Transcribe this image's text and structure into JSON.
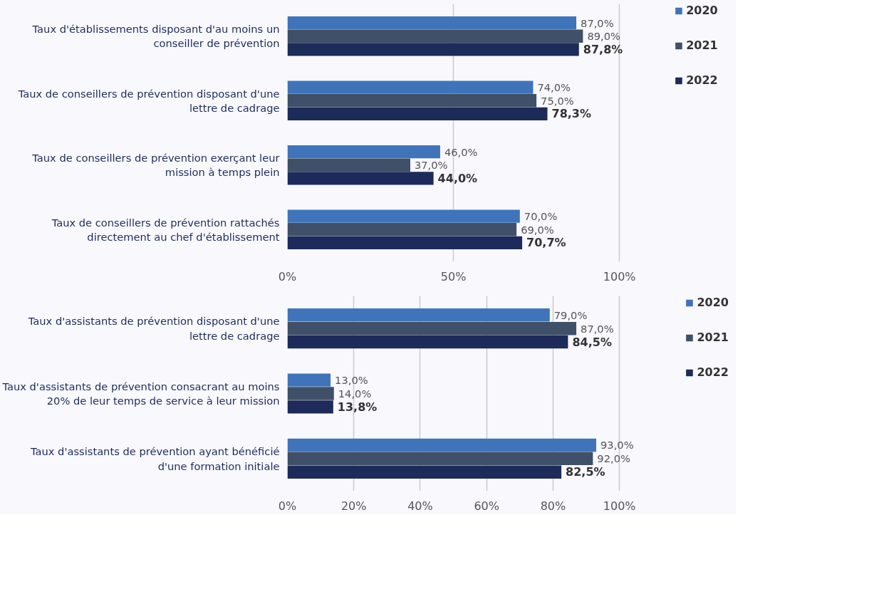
{
  "chart_data": [
    {
      "type": "bar",
      "orientation": "horizontal",
      "categories": [
        "Taux d'établissements disposant d'au moins un conseiller de prévention",
        "Taux de conseillers de prévention disposant d'une lettre de cadrage",
        "Taux de conseillers de prévention exerçant leur mission à temps plein",
        "Taux de conseillers de prévention rattachés directement au chef d'établissement"
      ],
      "series": [
        {
          "name": "2020",
          "color": "#3f74ba",
          "values": [
            87.0,
            74.0,
            46.0,
            70.0
          ],
          "value_labels": [
            "87,0%",
            "74,0%",
            "46,0%",
            "70,0%"
          ]
        },
        {
          "name": "2021",
          "color": "#3f5068",
          "values": [
            89.0,
            75.0,
            37.0,
            69.0
          ],
          "value_labels": [
            "89,0%",
            "75,0%",
            "37,0%",
            "69,0%"
          ]
        },
        {
          "name": "2022",
          "color": "#1d2b5a",
          "values": [
            87.8,
            78.3,
            44.0,
            70.7
          ],
          "value_labels": [
            "87,8%",
            "78,3%",
            "44,0%",
            "70,7%"
          ]
        }
      ],
      "xlim": [
        0,
        100
      ],
      "xticks": [
        {
          "value": 0,
          "label": "0%"
        },
        {
          "value": 50,
          "label": "50%"
        },
        {
          "value": 100,
          "label": "100%"
        }
      ],
      "grid": "x",
      "legend": "right"
    },
    {
      "type": "bar",
      "orientation": "horizontal",
      "categories": [
        "Taux d'assistants de prévention disposant d'une lettre de cadrage",
        "Taux d'assistants de prévention consacrant au moins 20% de leur temps de service à leur mission",
        "Taux d'assistants de prévention ayant bénéficié d'une formation initiale"
      ],
      "series": [
        {
          "name": "2020",
          "color": "#3f74ba",
          "values": [
            79.0,
            13.0,
            93.0
          ],
          "value_labels": [
            "79,0%",
            "13,0%",
            "93,0%"
          ]
        },
        {
          "name": "2021",
          "color": "#3f5068",
          "values": [
            87.0,
            14.0,
            92.0
          ],
          "value_labels": [
            "87,0%",
            "14,0%",
            "92,0%"
          ]
        },
        {
          "name": "2022",
          "color": "#1d2b5a",
          "values": [
            84.5,
            13.8,
            82.5
          ],
          "value_labels": [
            "84,5%",
            "13,8%",
            "82,5%"
          ]
        }
      ],
      "xlim": [
        0,
        100
      ],
      "xticks": [
        {
          "value": 0,
          "label": "0%"
        },
        {
          "value": 20,
          "label": "20%"
        },
        {
          "value": 40,
          "label": "40%"
        },
        {
          "value": 60,
          "label": "60%"
        },
        {
          "value": 80,
          "label": "80%"
        },
        {
          "value": 100,
          "label": "100%"
        }
      ],
      "grid": "x",
      "legend": "right"
    }
  ]
}
